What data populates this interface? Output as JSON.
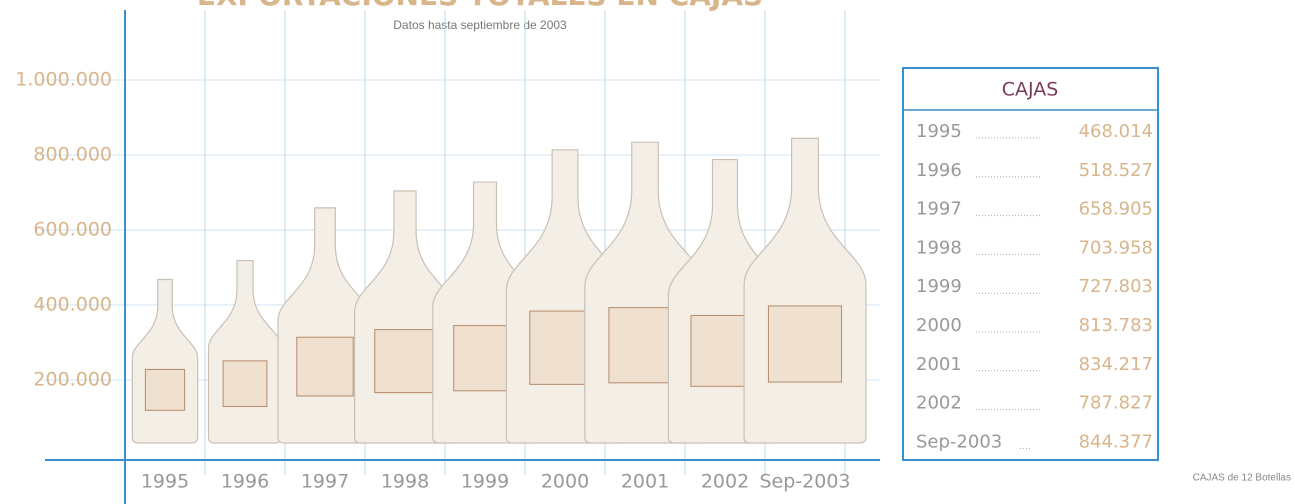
{
  "chart_data": {
    "type": "pictograph",
    "title": "EXPORTACIONES TOTALES EN CAJAS",
    "subtitle": "Datos hasta septiembre de 2003",
    "categories": [
      "1995",
      "1996",
      "1997",
      "1998",
      "1999",
      "2000",
      "2001",
      "2002",
      "Sep-2003"
    ],
    "values": [
      468014,
      518527,
      658905,
      703958,
      727803,
      813783,
      834217,
      787827,
      844377
    ],
    "value_labels": [
      "468.014",
      "518.527",
      "658.905",
      "703.958",
      "727.803",
      "813.783",
      "834.217",
      "787.827",
      "844.377"
    ],
    "ylim": [
      0,
      1200000
    ],
    "yticks": [
      {
        "value": 200000,
        "label": "200.000"
      },
      {
        "value": 400000,
        "label": "400.000"
      },
      {
        "value": 600000,
        "label": "600.000"
      },
      {
        "value": 800000,
        "label": "800.000"
      },
      {
        "value": 1000000,
        "label": "1.000.000"
      }
    ],
    "grid": true,
    "color": "#f4efe6",
    "table_title": "CAJAS",
    "footnote": "CAJAS de 12 Botellas"
  }
}
